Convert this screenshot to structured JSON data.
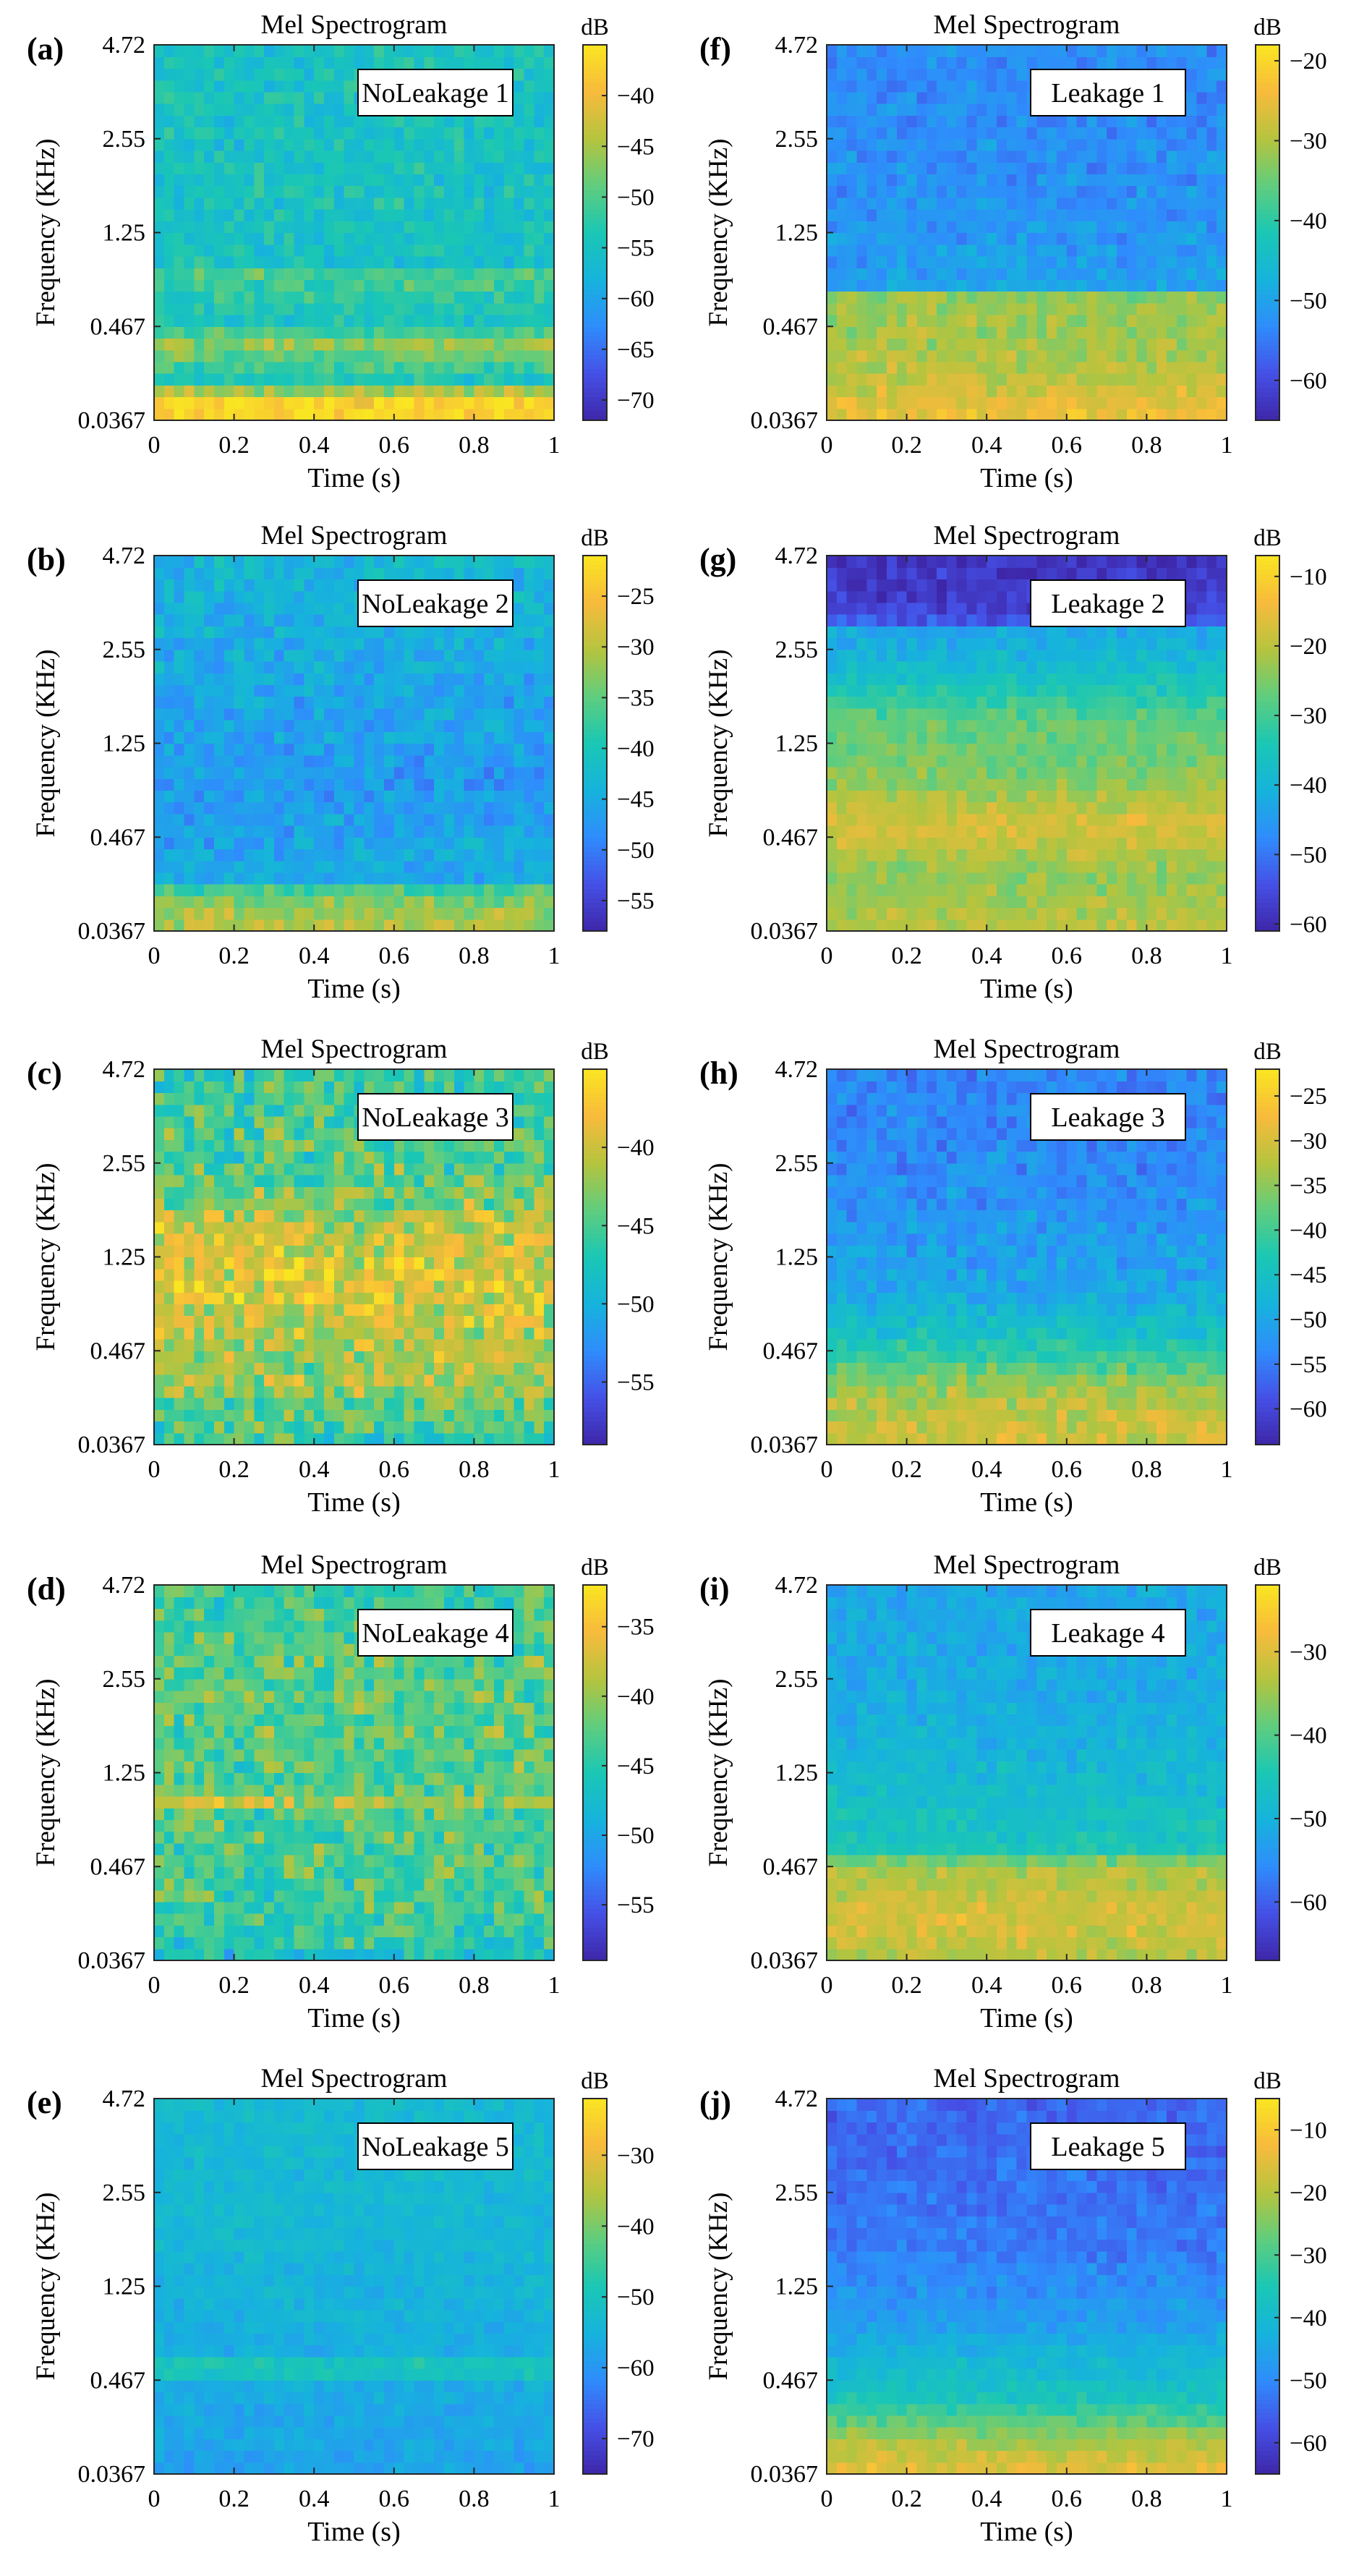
{
  "figure": {
    "layout": "5 rows x 2 columns of mel spectrogram heatmaps",
    "colormap": "parula",
    "colormap_stops": [
      "#3e26a8",
      "#4550e6",
      "#2f8cfc",
      "#16b3dc",
      "#1ac7b4",
      "#5fcd7e",
      "#b5c43e",
      "#f8ba3c",
      "#f9e521"
    ]
  },
  "chart_data": [
    {
      "type": "heatmap",
      "panel_label": "(a)",
      "title": "Mel Spectrogram",
      "annotation": "NoLeakage 1",
      "xlabel": "Time (s)",
      "ylabel": "Frequency (KHz)",
      "xlim": [
        0,
        1
      ],
      "xticks": [
        "0",
        "0.2",
        "0.4",
        "0.6",
        "0.8",
        "1"
      ],
      "yticks": [
        "0.0367",
        "0.467",
        "1.25",
        "2.55",
        "4.72"
      ],
      "colorbar_label": "dB",
      "colorbar_range": [
        -72,
        -35
      ],
      "colorbar_ticks": [
        "-40",
        "-45",
        "-50",
        "-55",
        "-60",
        "-65",
        "-70"
      ],
      "colorbar_tick_values": [
        -40,
        -45,
        -50,
        -55,
        -60,
        -65,
        -70
      ],
      "bins": {
        "time": 40,
        "mel": 32
      },
      "band_profile_db": [
        [
          0.0,
          -36
        ],
        [
          0.06,
          -37
        ],
        [
          0.1,
          -55
        ],
        [
          0.2,
          -46
        ],
        [
          0.26,
          -55
        ],
        [
          0.4,
          -50
        ],
        [
          0.42,
          -55
        ],
        [
          0.6,
          -55
        ],
        [
          1.0,
          -55
        ]
      ],
      "noise_db": 4.5,
      "seed": 11
    },
    {
      "type": "heatmap",
      "panel_label": "(b)",
      "title": "Mel Spectrogram",
      "annotation": "NoLeakage 2",
      "xlabel": "Time (s)",
      "ylabel": "Frequency (KHz)",
      "xlim": [
        0,
        1
      ],
      "xticks": [
        "0",
        "0.2",
        "0.4",
        "0.6",
        "0.8",
        "1"
      ],
      "yticks": [
        "0.0367",
        "0.467",
        "1.25",
        "2.55",
        "4.72"
      ],
      "colorbar_label": "dB",
      "colorbar_range": [
        -58,
        -21
      ],
      "colorbar_ticks": [
        "-25",
        "-30",
        "-35",
        "-40",
        "-45",
        "-50",
        "-55"
      ],
      "colorbar_tick_values": [
        -25,
        -30,
        -35,
        -40,
        -45,
        -50,
        -55
      ],
      "bins": {
        "time": 40,
        "mel": 32
      },
      "band_profile_db": [
        [
          0.0,
          -30
        ],
        [
          0.1,
          -33
        ],
        [
          0.13,
          -45
        ],
        [
          0.4,
          -47
        ],
        [
          0.7,
          -45
        ],
        [
          1.0,
          -43
        ]
      ],
      "noise_db": 4.5,
      "seed": 22
    },
    {
      "type": "heatmap",
      "panel_label": "(c)",
      "title": "Mel Spectrogram",
      "annotation": "NoLeakage 3",
      "xlabel": "Time (s)",
      "ylabel": "Frequency (KHz)",
      "xlim": [
        0,
        1
      ],
      "xticks": [
        "0",
        "0.2",
        "0.4",
        "0.6",
        "0.8",
        "1"
      ],
      "yticks": [
        "0.0367",
        "0.467",
        "1.25",
        "2.55",
        "4.72"
      ],
      "colorbar_label": "dB",
      "colorbar_range": [
        -59,
        -35
      ],
      "colorbar_ticks": [
        "-40",
        "-45",
        "-50",
        "-55"
      ],
      "colorbar_tick_values": [
        -40,
        -45,
        -50,
        -55
      ],
      "bins": {
        "time": 40,
        "mel": 32
      },
      "band_profile_db": [
        [
          0.0,
          -46
        ],
        [
          0.18,
          -42
        ],
        [
          0.38,
          -40
        ],
        [
          0.42,
          -38
        ],
        [
          0.6,
          -41
        ],
        [
          0.72,
          -45
        ],
        [
          1.0,
          -46
        ]
      ],
      "noise_db": 5.5,
      "seed": 33
    },
    {
      "type": "heatmap",
      "panel_label": "(d)",
      "title": "Mel Spectrogram",
      "annotation": "NoLeakage 4",
      "xlabel": "Time (s)",
      "ylabel": "Frequency (KHz)",
      "xlim": [
        0,
        1
      ],
      "xticks": [
        "0",
        "0.2",
        "0.4",
        "0.6",
        "0.8",
        "1"
      ],
      "yticks": [
        "0.0367",
        "0.467",
        "1.25",
        "2.55",
        "4.72"
      ],
      "colorbar_label": "dB",
      "colorbar_range": [
        -59,
        -32
      ],
      "colorbar_ticks": [
        "-35",
        "-40",
        "-45",
        "-50",
        "-55"
      ],
      "colorbar_tick_values": [
        -35,
        -40,
        -45,
        -50,
        -55
      ],
      "bins": {
        "time": 40,
        "mel": 32
      },
      "band_profile_db": [
        [
          0.0,
          -47
        ],
        [
          0.1,
          -44
        ],
        [
          0.4,
          -43
        ],
        [
          0.43,
          -37
        ],
        [
          0.45,
          -43
        ],
        [
          0.7,
          -42
        ],
        [
          1.0,
          -44
        ]
      ],
      "noise_db": 5.5,
      "seed": 44
    },
    {
      "type": "heatmap",
      "panel_label": "(e)",
      "title": "Mel Spectrogram",
      "annotation": "NoLeakage 5",
      "xlabel": "Time (s)",
      "ylabel": "Frequency (KHz)",
      "xlim": [
        0,
        1
      ],
      "xticks": [
        "0",
        "0.2",
        "0.4",
        "0.6",
        "0.8",
        "1"
      ],
      "yticks": [
        "0.0367",
        "0.467",
        "1.25",
        "2.55",
        "4.72"
      ],
      "colorbar_label": "dB",
      "colorbar_range": [
        -75,
        -22
      ],
      "colorbar_ticks": [
        "-30",
        "-40",
        "-50",
        "-60",
        "-70"
      ],
      "colorbar_tick_values": [
        -30,
        -40,
        -50,
        -60,
        -70
      ],
      "bins": {
        "time": 40,
        "mel": 32
      },
      "band_profile_db": [
        [
          0.0,
          -58
        ],
        [
          0.25,
          -56
        ],
        [
          0.28,
          -45
        ],
        [
          0.32,
          -56
        ],
        [
          0.6,
          -54
        ],
        [
          1.0,
          -53
        ]
      ],
      "noise_db": 3.5,
      "seed": 55
    },
    {
      "type": "heatmap",
      "panel_label": "(f)",
      "title": "Mel Spectrogram",
      "annotation": "Leakage 1",
      "xlabel": "Time (s)",
      "ylabel": "Frequency (KHz)",
      "xlim": [
        0,
        1
      ],
      "xticks": [
        "0",
        "0.2",
        "0.4",
        "0.6",
        "0.8",
        "1"
      ],
      "yticks": [
        "0.0367",
        "0.467",
        "1.25",
        "2.55",
        "4.72"
      ],
      "colorbar_label": "dB",
      "colorbar_range": [
        -65,
        -18
      ],
      "colorbar_ticks": [
        "-20",
        "-30",
        "-40",
        "-50",
        "-60"
      ],
      "colorbar_tick_values": [
        -20,
        -30,
        -40,
        -50,
        -60
      ],
      "bins": {
        "time": 40,
        "mel": 32
      },
      "band_profile_db": [
        [
          0.0,
          -24
        ],
        [
          0.15,
          -30
        ],
        [
          0.33,
          -32
        ],
        [
          0.36,
          -50
        ],
        [
          0.55,
          -52
        ],
        [
          1.0,
          -53
        ]
      ],
      "noise_db": 4.5,
      "seed": 66
    },
    {
      "type": "heatmap",
      "panel_label": "(g)",
      "title": "Mel Spectrogram",
      "annotation": "Leakage 2",
      "xlabel": "Time (s)",
      "ylabel": "Frequency (KHz)",
      "xlim": [
        0,
        1
      ],
      "xticks": [
        "0",
        "0.2",
        "0.4",
        "0.6",
        "0.8",
        "1"
      ],
      "yticks": [
        "0.0367",
        "0.467",
        "1.25",
        "2.55",
        "4.72"
      ],
      "colorbar_label": "dB",
      "colorbar_range": [
        -61,
        -7
      ],
      "colorbar_ticks": [
        "-10",
        "-20",
        "-30",
        "-40",
        "-50",
        "-60"
      ],
      "colorbar_tick_values": [
        -10,
        -20,
        -30,
        -40,
        -50,
        -60
      ],
      "bins": {
        "time": 40,
        "mel": 32
      },
      "band_profile_db": [
        [
          0.0,
          -20
        ],
        [
          0.15,
          -24
        ],
        [
          0.28,
          -17
        ],
        [
          0.4,
          -24
        ],
        [
          0.55,
          -27
        ],
        [
          0.7,
          -38
        ],
        [
          0.8,
          -43
        ],
        [
          0.84,
          -57
        ],
        [
          1.0,
          -59
        ]
      ],
      "noise_db": 4.5,
      "seed": 77
    },
    {
      "type": "heatmap",
      "panel_label": "(h)",
      "title": "Mel Spectrogram",
      "annotation": "Leakage 3",
      "xlabel": "Time (s)",
      "ylabel": "Frequency (KHz)",
      "xlim": [
        0,
        1
      ],
      "xticks": [
        "0",
        "0.2",
        "0.4",
        "0.6",
        "0.8",
        "1"
      ],
      "yticks": [
        "0.0367",
        "0.467",
        "1.25",
        "2.55",
        "4.72"
      ],
      "colorbar_label": "dB",
      "colorbar_range": [
        -64,
        -22
      ],
      "colorbar_ticks": [
        "-25",
        "-30",
        "-35",
        "-40",
        "-45",
        "-50",
        "-55",
        "-60"
      ],
      "colorbar_tick_values": [
        -25,
        -30,
        -35,
        -40,
        -45,
        -50,
        -55,
        -60
      ],
      "bins": {
        "time": 40,
        "mel": 32
      },
      "band_profile_db": [
        [
          0.0,
          -30
        ],
        [
          0.15,
          -34
        ],
        [
          0.25,
          -42
        ],
        [
          0.4,
          -50
        ],
        [
          0.7,
          -53
        ],
        [
          1.0,
          -54
        ]
      ],
      "noise_db": 4.5,
      "seed": 88
    },
    {
      "type": "heatmap",
      "panel_label": "(i)",
      "title": "Mel Spectrogram",
      "annotation": "Leakage 4",
      "xlabel": "Time (s)",
      "ylabel": "Frequency (KHz)",
      "xlim": [
        0,
        1
      ],
      "xticks": [
        "0",
        "0.2",
        "0.4",
        "0.6",
        "0.8",
        "1"
      ],
      "yticks": [
        "0.0367",
        "0.467",
        "1.25",
        "2.55",
        "4.72"
      ],
      "colorbar_label": "dB",
      "colorbar_range": [
        -67,
        -22
      ],
      "colorbar_ticks": [
        "-30",
        "-40",
        "-50",
        "-60"
      ],
      "colorbar_tick_values": [
        -30,
        -40,
        -50,
        -60
      ],
      "bins": {
        "time": 40,
        "mel": 32
      },
      "band_profile_db": [
        [
          0.0,
          -34
        ],
        [
          0.1,
          -30
        ],
        [
          0.25,
          -34
        ],
        [
          0.3,
          -45
        ],
        [
          0.45,
          -48
        ],
        [
          0.7,
          -51
        ],
        [
          1.0,
          -52
        ]
      ],
      "noise_db": 4.0,
      "seed": 99
    },
    {
      "type": "heatmap",
      "panel_label": "(j)",
      "title": "Mel Spectrogram",
      "annotation": "Leakage 5",
      "xlabel": "Time (s)",
      "ylabel": "Frequency (KHz)",
      "xlim": [
        0,
        1
      ],
      "xticks": [
        "0",
        "0.2",
        "0.4",
        "0.6",
        "0.8",
        "1"
      ],
      "yticks": [
        "0.0367",
        "0.467",
        "1.25",
        "2.55",
        "4.72"
      ],
      "colorbar_label": "dB",
      "colorbar_range": [
        -65,
        -5
      ],
      "colorbar_ticks": [
        "-10",
        "-20",
        "-30",
        "-40",
        "-50",
        "-60"
      ],
      "colorbar_tick_values": [
        -10,
        -20,
        -30,
        -40,
        -50,
        -60
      ],
      "bins": {
        "time": 40,
        "mel": 32
      },
      "band_profile_db": [
        [
          0.0,
          -14
        ],
        [
          0.08,
          -20
        ],
        [
          0.2,
          -36
        ],
        [
          0.4,
          -46
        ],
        [
          0.6,
          -52
        ],
        [
          1.0,
          -55
        ]
      ],
      "noise_db": 4.5,
      "seed": 111
    }
  ]
}
